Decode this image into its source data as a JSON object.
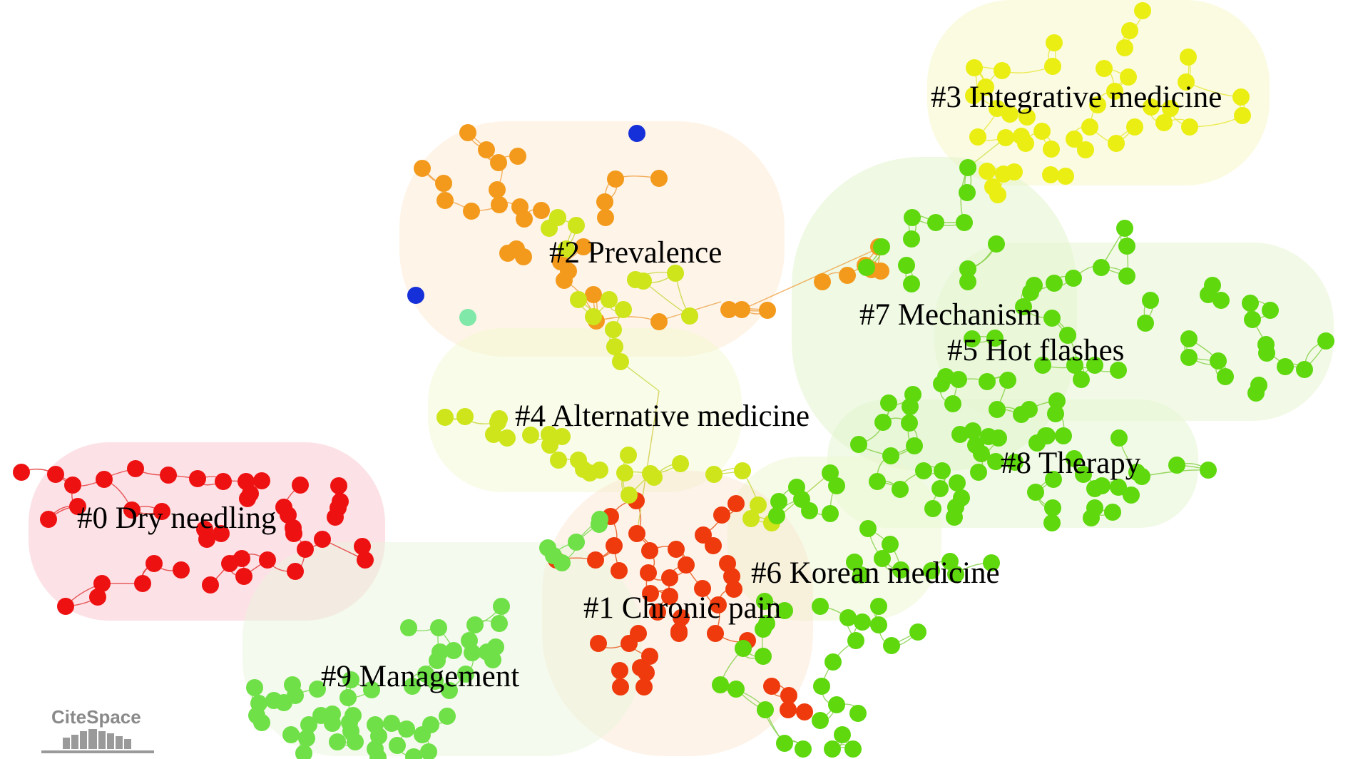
{
  "logo": {
    "text": "CiteSpace"
  },
  "colors": {
    "dry_needling": "#ee1111",
    "chronic_pain": "#ee3a0c",
    "prevalence": "#f39a1c",
    "integrative": "#eaee12",
    "alternative": "#cde51a",
    "green": "#5fd80e",
    "management": "#6fe048",
    "isolated_blue": "#1530d8",
    "isolated_teal": "#80e8a8"
  },
  "clusters": [
    {
      "id": "c0",
      "label": "#0 Dry needling",
      "color": "#ee1111",
      "halo": "#f9c9d2"
    },
    {
      "id": "c1",
      "label": "#1 Chronic pain",
      "color": "#ee3a0c",
      "halo": "#fbe1c8"
    },
    {
      "id": "c2",
      "label": "#2 Prevalence",
      "color": "#f39a1c",
      "halo": "#fde6cc"
    },
    {
      "id": "c3",
      "label": "#3 Integrative medicine",
      "color": "#eaee12",
      "halo": "#f8f8c8"
    },
    {
      "id": "c4",
      "label": "#4 Alternative medicine",
      "color": "#cde51a",
      "halo": "#f2f8cc"
    },
    {
      "id": "c5",
      "label": "#5 Hot flashes",
      "color": "#5fd80e",
      "halo": "#e6f6d0"
    },
    {
      "id": "c6",
      "label": "#6 Korean medicine",
      "color": "#7ad80e",
      "halo": "#eef7d0"
    },
    {
      "id": "c7",
      "label": "#7 Mechanism",
      "color": "#5fd80e",
      "halo": "#e1f4cc"
    },
    {
      "id": "c8",
      "label": "#8 Therapy",
      "color": "#5fd80e",
      "halo": "#e3f5cf"
    },
    {
      "id": "c9",
      "label": "#9 Management",
      "color": "#6fe048",
      "halo": "#eaf6dc"
    }
  ]
}
